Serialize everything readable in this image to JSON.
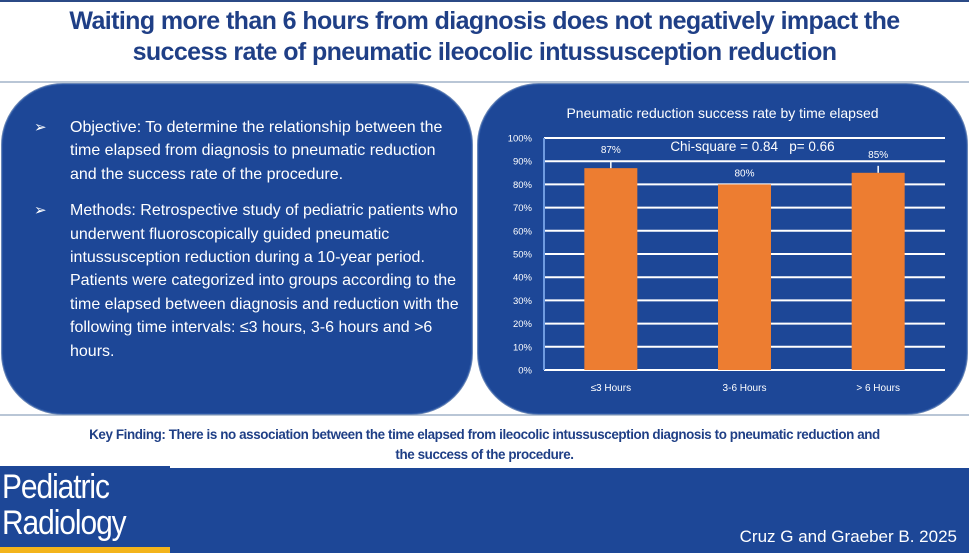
{
  "title": {
    "line1": "Waiting more than 6 hours from diagnosis does not negatively impact the",
    "line2": "success rate of pneumatic ileocolic intussusception reduction"
  },
  "left_panel": {
    "bullet_icon": "arrowhead-bullet-icon",
    "bullets": [
      "Objective: To determine the relationship between the time elapsed from diagnosis to pneumatic reduction and the success rate of the procedure.",
      "Methods: Retrospective study of pediatric patients who underwent fluoroscopically guided pneumatic intussusception reduction during a 10-year period. Patients were categorized into groups according to the time elapsed between diagnosis and reduction with the following time intervals: ≤3 hours, 3-6 hours and >6 hours."
    ]
  },
  "chart_data": {
    "type": "bar",
    "title": "Pneumatic reduction success rate by time elapsed",
    "categories": [
      "≤3 Hours",
      "3-6 Hours",
      "> 6 Hours"
    ],
    "values": [
      87,
      80,
      85
    ],
    "data_labels": [
      "87%",
      "80%",
      "85%"
    ],
    "error_bar_upper": [
      90,
      80,
      88
    ],
    "annotation": "Chi-square = 0.84   p= 0.66",
    "xlabel": "",
    "ylabel": "",
    "ylim": [
      0,
      100
    ],
    "yticks": [
      0,
      10,
      20,
      30,
      40,
      50,
      60,
      70,
      80,
      90,
      100
    ],
    "ytick_labels": [
      "0%",
      "10%",
      "20%",
      "30%",
      "40%",
      "50%",
      "60%",
      "70%",
      "80%",
      "90%",
      "100%"
    ],
    "grid": true,
    "bar_color": "#ed7d31",
    "legend": "none"
  },
  "key_finding": {
    "line1": "Key Finding: There is no association between the time elapsed from ileocolic intussusception diagnosis to pneumatic reduction and",
    "line2": "the success of the procedure."
  },
  "footer": {
    "logo_line1": "Pediatric",
    "logo_line2": "Radiology",
    "citation": "Cruz G and Graeber B. 2025"
  },
  "colors": {
    "title": "#1f3f86",
    "panel": "#1d4797",
    "bar": "#ed7d31",
    "logo_stripe": "#f3b41b"
  }
}
